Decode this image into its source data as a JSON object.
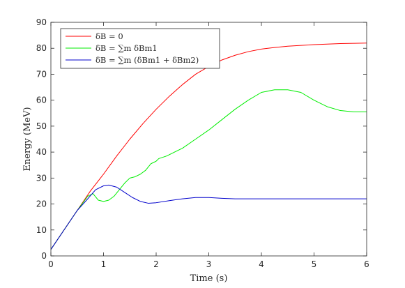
{
  "chart_data": {
    "type": "line",
    "title": "",
    "xlabel": "Time (s)",
    "ylabel": "Energy (MeV)",
    "xlim": [
      0,
      6
    ],
    "ylim": [
      0,
      90
    ],
    "xticks": [
      "0",
      "1",
      "2",
      "3",
      "4",
      "5",
      "6"
    ],
    "yticks": [
      "0",
      "10",
      "20",
      "30",
      "40",
      "50",
      "60",
      "70",
      "80",
      "90"
    ],
    "grid": false,
    "legend_position": "top-left",
    "series": [
      {
        "name": "δB = 0",
        "color": "#ff0000",
        "points": [
          [
            0,
            2.5
          ],
          [
            0.25,
            10
          ],
          [
            0.5,
            17.5
          ],
          [
            0.75,
            25
          ],
          [
            1,
            31.5
          ],
          [
            1.25,
            38.5
          ],
          [
            1.5,
            45
          ],
          [
            1.75,
            51
          ],
          [
            2,
            56.5
          ],
          [
            2.25,
            61.5
          ],
          [
            2.5,
            66
          ],
          [
            2.75,
            70
          ],
          [
            3,
            73
          ],
          [
            3.25,
            75.5
          ],
          [
            3.5,
            77.3
          ],
          [
            3.75,
            78.7
          ],
          [
            4,
            79.7
          ],
          [
            4.25,
            80.3
          ],
          [
            4.5,
            80.8
          ],
          [
            4.75,
            81.1
          ],
          [
            5,
            81.4
          ],
          [
            5.25,
            81.6
          ],
          [
            5.5,
            81.8
          ],
          [
            5.75,
            81.9
          ],
          [
            6,
            82
          ]
        ]
      },
      {
        "name": "δB = ∑m δBm1",
        "color": "#00ee00",
        "points": [
          [
            0,
            2.5
          ],
          [
            0.25,
            10
          ],
          [
            0.5,
            17.5
          ],
          [
            0.7,
            23
          ],
          [
            0.8,
            24
          ],
          [
            0.9,
            21.5
          ],
          [
            1,
            21
          ],
          [
            1.1,
            21.5
          ],
          [
            1.2,
            23
          ],
          [
            1.3,
            25.5
          ],
          [
            1.4,
            28
          ],
          [
            1.5,
            30
          ],
          [
            1.6,
            30.5
          ],
          [
            1.7,
            31.5
          ],
          [
            1.8,
            33
          ],
          [
            1.9,
            35.5
          ],
          [
            1.95,
            36
          ],
          [
            2,
            36.5
          ],
          [
            2.05,
            37.5
          ],
          [
            2.2,
            38.5
          ],
          [
            2.5,
            41.5
          ],
          [
            2.75,
            45
          ],
          [
            3,
            48.5
          ],
          [
            3.25,
            52.5
          ],
          [
            3.5,
            56.5
          ],
          [
            3.75,
            60
          ],
          [
            4,
            63
          ],
          [
            4.25,
            64
          ],
          [
            4.5,
            64
          ],
          [
            4.75,
            63
          ],
          [
            5,
            60
          ],
          [
            5.25,
            57.5
          ],
          [
            5.5,
            56
          ],
          [
            5.75,
            55.5
          ],
          [
            6,
            55.5
          ]
        ]
      },
      {
        "name": "δB = ∑m (δBm1 + δBm2)",
        "color": "#0000cc",
        "points": [
          [
            0,
            2.5
          ],
          [
            0.25,
            10
          ],
          [
            0.5,
            17.5
          ],
          [
            0.7,
            22
          ],
          [
            0.85,
            25.5
          ],
          [
            1,
            27
          ],
          [
            1.1,
            27.3
          ],
          [
            1.25,
            26.5
          ],
          [
            1.4,
            24.5
          ],
          [
            1.55,
            22.5
          ],
          [
            1.7,
            21
          ],
          [
            1.85,
            20.3
          ],
          [
            2,
            20.5
          ],
          [
            2.25,
            21.3
          ],
          [
            2.5,
            22
          ],
          [
            2.75,
            22.5
          ],
          [
            3,
            22.5
          ],
          [
            3.25,
            22.2
          ],
          [
            3.5,
            22
          ],
          [
            4,
            22
          ],
          [
            4.5,
            22
          ],
          [
            5,
            22
          ],
          [
            5.5,
            22
          ],
          [
            6,
            22
          ]
        ]
      }
    ]
  }
}
